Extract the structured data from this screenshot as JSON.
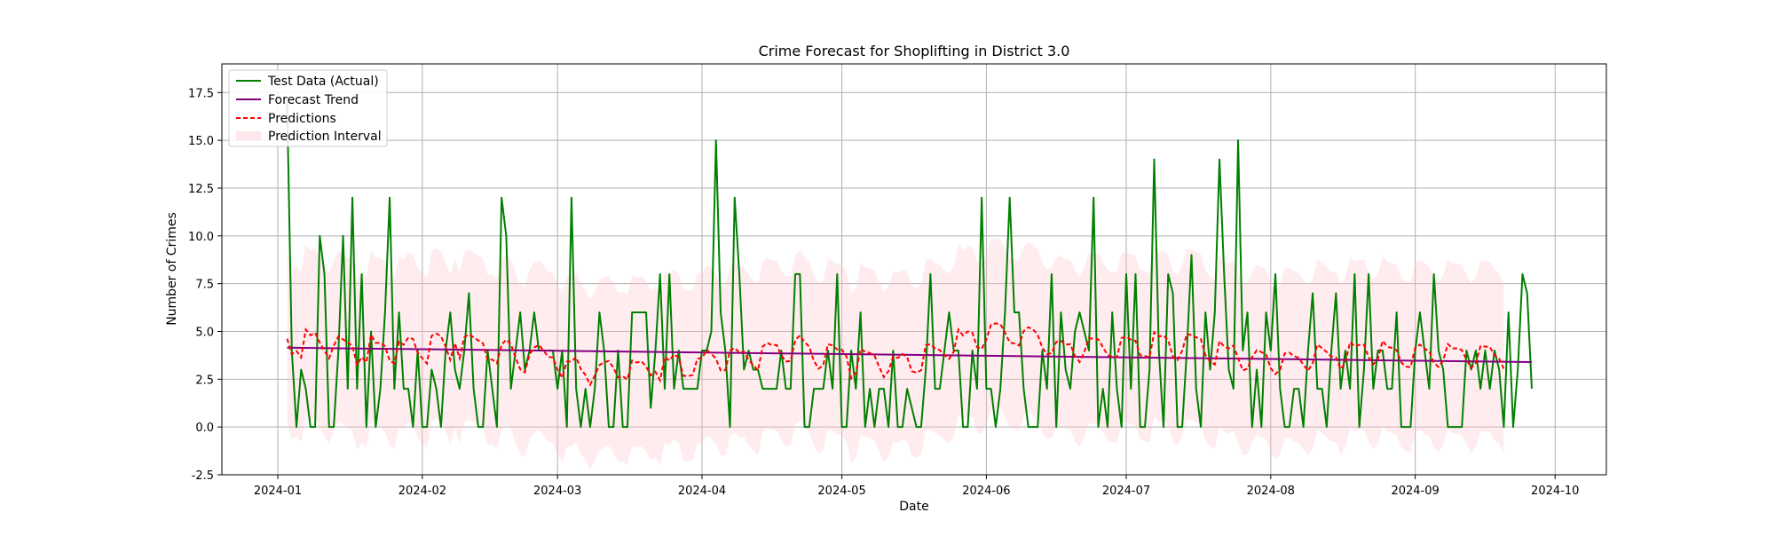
{
  "chart_data": {
    "type": "line",
    "title": "Crime Forecast for Shoplifting in District 3.0",
    "xlabel": "Date",
    "ylabel": "Number of Crimes",
    "x_start": "2024-01-03",
    "x_range": [
      "2023-12-20",
      "2024-10-12"
    ],
    "ylim": [
      -2.5,
      19
    ],
    "x_ticks": [
      "2024-01",
      "2024-02",
      "2024-03",
      "2024-04",
      "2024-05",
      "2024-06",
      "2024-07",
      "2024-08",
      "2024-09",
      "2024-10"
    ],
    "y_ticks": [
      "-2.5",
      "0.0",
      "2.5",
      "5.0",
      "7.5",
      "10.0",
      "12.5",
      "15.0",
      "17.5"
    ],
    "grid": true,
    "legend_position": "upper left",
    "series": [
      {
        "name": "Test Data (Actual)",
        "color": "#008000",
        "style": "solid",
        "values": [
          17,
          4,
          0,
          3,
          2,
          0,
          0,
          10,
          8,
          0,
          0,
          4,
          10,
          2,
          12,
          2,
          8,
          0,
          5,
          0,
          2,
          6,
          12,
          2,
          6,
          2,
          2,
          0,
          4,
          0,
          0,
          3,
          2,
          0,
          4,
          6,
          3,
          2,
          4,
          7,
          2,
          0,
          0,
          4,
          2,
          0,
          12,
          10,
          2,
          4,
          6,
          3,
          4,
          6,
          4,
          4,
          4,
          4,
          2,
          4,
          0,
          12,
          2,
          0,
          2,
          0,
          2,
          6,
          4,
          0,
          0,
          4,
          0,
          0,
          6,
          6,
          6,
          6,
          1,
          4,
          8,
          2,
          8,
          2,
          4,
          2,
          2,
          2,
          2,
          4,
          4,
          5,
          15,
          6,
          4,
          0,
          12,
          8,
          3,
          4,
          3,
          3,
          2,
          2,
          2,
          2,
          4,
          2,
          2,
          8,
          8,
          0,
          0,
          2,
          2,
          2,
          4,
          2,
          8,
          0,
          0,
          4,
          2,
          6,
          0,
          2,
          0,
          2,
          2,
          0,
          4,
          0,
          0,
          2,
          1,
          0,
          0,
          3,
          8,
          2,
          2,
          4,
          6,
          4,
          4,
          0,
          0,
          4,
          2,
          12,
          2,
          2,
          0,
          2,
          6,
          12,
          6,
          6,
          2,
          0,
          0,
          0,
          4,
          2,
          8,
          0,
          6,
          3,
          2,
          5,
          6,
          5,
          4,
          12,
          0,
          2,
          0,
          6,
          2,
          0,
          8,
          2,
          8,
          0,
          0,
          3,
          14,
          4,
          0,
          8,
          7,
          0,
          0,
          4,
          9,
          2,
          0,
          6,
          3,
          6,
          14,
          8,
          3,
          2,
          15,
          4,
          6,
          0,
          3,
          0,
          6,
          4,
          8,
          2,
          0,
          0,
          2,
          2,
          0,
          4,
          7,
          2,
          2,
          0,
          4,
          7,
          2,
          4,
          2,
          8,
          0,
          3,
          8,
          2,
          4,
          4,
          2,
          2,
          6,
          0,
          0,
          0,
          4,
          6,
          4,
          2,
          8,
          4,
          3,
          0,
          0,
          0,
          0,
          4,
          3,
          4,
          2,
          4,
          2,
          4,
          3,
          0,
          6,
          0,
          3,
          8,
          7,
          2
        ]
      },
      {
        "name": "Forecast Trend",
        "color": "#800080",
        "style": "solid",
        "start": 4.15,
        "end": 3.4
      },
      {
        "name": "Predictions",
        "color": "#ff0000",
        "style": "dashed",
        "values": [
          4.62,
          3.81,
          3.98,
          3.64,
          5.1,
          4.8,
          4.93,
          4.42,
          3.99,
          3.59,
          4.26,
          4.74,
          4.58,
          4.43,
          4.24,
          3.25,
          3.65,
          3.38,
          4.83,
          4.4,
          4.4,
          4.23,
          3.47,
          3.33,
          4.47,
          4.3,
          4.68,
          4.61,
          3.88,
          3.6,
          3.32,
          4.77,
          4.89,
          4.75,
          4.2,
          3.51,
          4.38,
          3.6,
          4.69,
          4.85,
          4.69,
          4.53,
          4.38,
          3.52,
          3.53,
          3.33,
          4.3,
          4.57,
          4.33,
          3.63,
          3.02,
          2.86,
          3.8,
          4.15,
          4.3,
          4.0,
          3.67,
          3.64,
          3.01,
          2.58,
          3.42,
          3.43,
          3.66,
          3.03,
          2.72,
          2.21,
          2.69,
          3.24,
          3.38,
          3.46,
          3.1,
          2.59,
          2.65,
          2.48,
          3.48,
          3.37,
          3.44,
          3.17,
          2.7,
          2.89,
          2.44,
          3.66,
          3.48,
          3.81,
          3.61,
          2.68,
          2.66,
          2.72,
          3.58,
          3.6,
          4.03,
          3.84,
          3.56,
          2.96,
          2.97,
          3.99,
          4.14,
          3.89,
          3.94,
          3.5,
          3.24,
          2.96,
          4.2,
          4.4,
          4.28,
          4.29,
          3.75,
          3.43,
          3.45,
          4.55,
          4.79,
          4.44,
          4.2,
          3.46,
          3.05,
          3.22,
          4.33,
          4.27,
          4.06,
          4.04,
          3.69,
          2.55,
          2.82,
          4.08,
          3.94,
          3.87,
          3.74,
          3.15,
          2.61,
          2.92,
          3.68,
          3.61,
          3.82,
          3.66,
          2.92,
          2.84,
          2.97,
          4.27,
          4.34,
          4.12,
          4.02,
          3.77,
          3.56,
          3.94,
          5.1,
          4.79,
          5.0,
          4.93,
          4.18,
          4.09,
          4.58,
          5.36,
          5.42,
          5.38,
          4.95,
          4.42,
          4.37,
          4.26,
          5.02,
          5.22,
          5.11,
          4.83,
          4.14,
          3.81,
          3.87,
          4.45,
          4.51,
          4.31,
          4.33,
          3.72,
          3.4,
          3.93,
          4.65,
          4.61,
          4.59,
          4.17,
          3.77,
          3.67,
          3.65,
          4.66,
          4.72,
          4.57,
          4.51,
          3.75,
          3.71,
          3.64,
          4.96,
          4.74,
          4.78,
          4.54,
          3.68,
          3.5,
          3.98,
          4.87,
          4.81,
          4.69,
          4.61,
          3.76,
          3.43,
          3.27,
          4.5,
          4.21,
          4.11,
          4.26,
          3.6,
          2.96,
          3.05,
          3.65,
          4.02,
          3.92,
          3.79,
          3.07,
          2.77,
          2.99,
          3.85,
          3.89,
          3.7,
          3.62,
          3.26,
          2.94,
          3.34,
          4.31,
          4.13,
          3.92,
          3.68,
          3.64,
          3.03,
          3.36,
          4.44,
          4.23,
          4.29,
          4.3,
          3.65,
          3.28,
          3.57,
          4.51,
          4.2,
          4.13,
          4.02,
          3.38,
          3.16,
          3.13,
          4.15,
          4.31,
          4.1,
          3.96,
          3.35,
          3.14,
          3.49,
          4.34,
          4.11,
          4.12,
          4.02,
          3.52,
          3.09,
          3.36,
          4.23,
          4.21,
          4.19,
          3.76,
          3.57,
          3.05
        ]
      },
      {
        "name": "Prediction Interval",
        "color": "#ffc0cb",
        "fill_alpha": 0.3,
        "type": "band",
        "half_width": 4.45
      }
    ]
  }
}
